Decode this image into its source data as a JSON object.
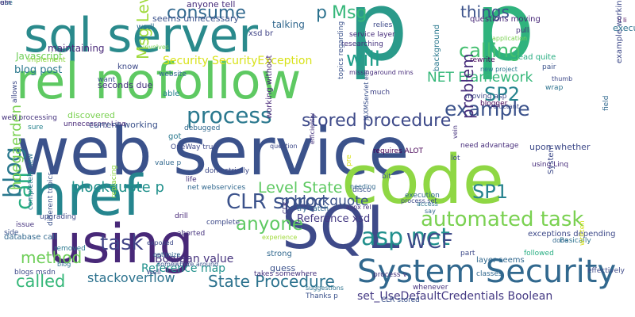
{
  "words": [
    {
      "text": "web service",
      "color": "#3b528b",
      "orientation": "horizontal"
    },
    {
      "text": "p",
      "color": "#2a9a8a",
      "orientation": "horizontal"
    },
    {
      "text": "p",
      "color": "#2fb37d",
      "orientation": "horizontal"
    },
    {
      "text": "sql server",
      "color": "#2a8a8c",
      "orientation": "horizontal"
    },
    {
      "text": "rel nofollow",
      "color": "#5ec962",
      "orientation": "horizontal"
    },
    {
      "text": "href",
      "color": "#25858e",
      "orientation": "horizontal"
    },
    {
      "text": "code",
      "color": "#8fd744",
      "orientation": "horizontal"
    },
    {
      "text": "using",
      "color": "#482878",
      "orientation": "horizontal"
    },
    {
      "text": "SQL",
      "color": "#3e4a89",
      "orientation": "horizontal"
    },
    {
      "text": "System Security",
      "color": "#31688e",
      "orientation": "horizontal"
    },
    {
      "text": "asp net",
      "color": "#21908d",
      "orientation": "horizontal"
    },
    {
      "text": "consume",
      "color": "#31688e",
      "orientation": "horizontal"
    },
    {
      "text": "Msg",
      "color": "#35b779",
      "orientation": "horizontal"
    },
    {
      "text": "p",
      "color": "#2c728e",
      "orientation": "horizontal"
    },
    {
      "text": "will",
      "color": "#1f9e89",
      "orientation": "horizontal"
    },
    {
      "text": "things",
      "color": "#3b528b",
      "orientation": "horizontal"
    },
    {
      "text": "calling",
      "color": "#44bf70",
      "orientation": "horizontal"
    },
    {
      "text": "process",
      "color": "#2a788e",
      "orientation": "horizontal"
    },
    {
      "text": "SP2",
      "color": "#25838e",
      "orientation": "horizontal"
    },
    {
      "text": "example",
      "color": "#3b528b",
      "orientation": "horizontal"
    },
    {
      "text": "stored procedure",
      "color": "#3e4a89",
      "orientation": "horizontal"
    },
    {
      "text": "CLR sproc",
      "color": "#3b528b",
      "orientation": "horizontal"
    },
    {
      "text": "anyone",
      "color": "#5ec962",
      "orientation": "horizontal"
    },
    {
      "text": "task",
      "color": "#414487",
      "orientation": "horizontal"
    },
    {
      "text": "automated task",
      "color": "#7ad151",
      "orientation": "horizontal"
    },
    {
      "text": "SP1",
      "color": "#26828e",
      "orientation": "horizontal"
    },
    {
      "text": "WCF",
      "color": "#3e4a89",
      "orientation": "horizontal"
    },
    {
      "text": "called",
      "color": "#35b779",
      "orientation": "horizontal"
    },
    {
      "text": "State Procedure",
      "color": "#2c728e",
      "orientation": "horizontal"
    },
    {
      "text": "method",
      "color": "#6ece58",
      "orientation": "horizontal"
    },
    {
      "text": "blockquote p",
      "color": "#21918c",
      "orientation": "horizontal"
    },
    {
      "text": "p blockquote",
      "color": "#3b528b",
      "orientation": "horizontal"
    },
    {
      "text": "Level State",
      "color": "#5ec962",
      "orientation": "horizontal"
    },
    {
      "text": "NET Framework",
      "color": "#35b779",
      "orientation": "horizontal"
    },
    {
      "text": "problem",
      "color": "#472d7b",
      "orientation": "vertical"
    },
    {
      "text": "call",
      "color": "#27ad81",
      "orientation": "vertical"
    },
    {
      "text": "blog",
      "color": "#2a788e",
      "orientation": "vertical"
    },
    {
      "text": "hoegaerden",
      "color": "#7ad151",
      "orientation": "vertical"
    },
    {
      "text": "Msg Level",
      "color": "#9fda3a",
      "orientation": "vertical"
    },
    {
      "text": "Security SecurityException",
      "color": "#d8e219",
      "orientation": "horizontal"
    },
    {
      "text": "set_UseDefaultCredentials Boolean",
      "color": "#443983",
      "orientation": "horizontal"
    },
    {
      "text": "stackoverflow",
      "color": "#2c728e",
      "orientation": "horizontal"
    },
    {
      "text": "Boolean value",
      "color": "#46337e",
      "orientation": "horizontal"
    },
    {
      "text": "Reference map",
      "color": "#21918c",
      "orientation": "horizontal"
    },
    {
      "text": "Reference xsd",
      "color": "#443983",
      "orientation": "horizontal"
    },
    {
      "text": "blog post",
      "color": "#2a788e",
      "orientation": "horizontal"
    },
    {
      "text": "Javascript",
      "color": "#6ece58",
      "orientation": "horizontal"
    },
    {
      "text": "maintaining",
      "color": "#482878",
      "orientation": "horizontal"
    },
    {
      "text": "anyone tell",
      "color": "#472d7b",
      "orientation": "horizontal"
    },
    {
      "text": "seems unnecessary",
      "color": "#3b528b",
      "orientation": "horizontal"
    },
    {
      "text": "wsdl",
      "color": "#2c728e",
      "orientation": "horizontal"
    },
    {
      "text": "talking",
      "color": "#31688e",
      "orientation": "horizontal"
    },
    {
      "text": "xsd br",
      "color": "#414487",
      "orientation": "horizontal"
    },
    {
      "text": "questions moving",
      "color": "#482878",
      "orientation": "horizontal"
    },
    {
      "text": "service layer",
      "color": "#472d7b",
      "orientation": "horizontal"
    },
    {
      "text": "researching",
      "color": "#46337e",
      "orientation": "horizontal"
    },
    {
      "text": "application",
      "color": "#7ad151",
      "orientation": "horizontal"
    },
    {
      "text": "rewrite",
      "color": "#440154",
      "orientation": "horizontal"
    },
    {
      "text": "read quite",
      "color": "#27ad81",
      "orientation": "horizontal"
    },
    {
      "text": "li li",
      "color": "#440154",
      "orientation": "horizontal"
    },
    {
      "text": "pair",
      "color": "#3b528b",
      "orientation": "horizontal"
    },
    {
      "text": "thumb",
      "color": "#3e4a89",
      "orientation": "horizontal"
    },
    {
      "text": "wrap",
      "color": "#2c728e",
      "orientation": "horizontal"
    },
    {
      "text": "new project",
      "color": "#2a788e",
      "orientation": "horizontal"
    },
    {
      "text": "moving asp",
      "color": "#3e4a89",
      "orientation": "horizontal"
    },
    {
      "text": "blogger",
      "color": "#440154",
      "orientation": "horizontal"
    },
    {
      "text": "reluctant",
      "color": "#3e4a89",
      "orientation": "horizontal"
    },
    {
      "text": "implement",
      "color": "#8fd744",
      "orientation": "horizontal"
    },
    {
      "text": "seconds due",
      "color": "#46337e",
      "orientation": "horizontal"
    },
    {
      "text": "want",
      "color": "#3b528b",
      "orientation": "horizontal"
    },
    {
      "text": "able",
      "color": "#26828e",
      "orientation": "horizontal"
    },
    {
      "text": "website",
      "color": "#31688e",
      "orientation": "horizontal"
    },
    {
      "text": "missingaround mins",
      "color": "#472d7b",
      "orientation": "horizontal"
    },
    {
      "text": "much",
      "color": "#414487",
      "orientation": "horizontal"
    },
    {
      "text": "involves",
      "color": "#7ad151",
      "orientation": "horizontal"
    },
    {
      "text": "relies",
      "color": "#3e4a89",
      "orientation": "horizontal"
    },
    {
      "text": "pull",
      "color": "#46337e",
      "orientation": "horizontal"
    },
    {
      "text": "discovered",
      "color": "#7ad151",
      "orientation": "horizontal"
    },
    {
      "text": "sure",
      "color": "#26828e",
      "orientation": "horizontal"
    },
    {
      "text": "unnecessary Linq",
      "color": "#482878",
      "orientation": "horizontal"
    },
    {
      "text": "current working",
      "color": "#3b528b",
      "orientation": "horizontal"
    },
    {
      "text": "debugged",
      "color": "#31688e",
      "orientation": "horizontal"
    },
    {
      "text": "got",
      "color": "#2a788e",
      "orientation": "horizontal"
    },
    {
      "text": "OneWay true",
      "color": "#3e4a89",
      "orientation": "horizontal"
    },
    {
      "text": "value p",
      "color": "#31688e",
      "orientation": "horizontal"
    },
    {
      "text": "done strictly",
      "color": "#3e4a89",
      "orientation": "horizontal"
    },
    {
      "text": "life",
      "color": "#46337e",
      "orientation": "horizontal"
    },
    {
      "text": "net webservices",
      "color": "#31688e",
      "orientation": "horizontal"
    },
    {
      "text": "question",
      "color": "#3e4a89",
      "orientation": "horizontal"
    },
    {
      "text": "requires ALOT",
      "color": "#440154",
      "orientation": "horizontal"
    },
    {
      "text": "try catch",
      "color": "#31688e",
      "orientation": "horizontal"
    },
    {
      "text": "disco",
      "color": "#3b528b",
      "orientation": "horizontal"
    },
    {
      "text": "aspx rel",
      "color": "#46337e",
      "orientation": "horizontal"
    },
    {
      "text": "process set",
      "color": "#3e4a89",
      "orientation": "horizontal"
    },
    {
      "text": "using Linq",
      "color": "#472d7b",
      "orientation": "horizontal"
    },
    {
      "text": "upon whether",
      "color": "#3e4a89",
      "orientation": "horizontal"
    },
    {
      "text": "need advantage",
      "color": "#472d7b",
      "orientation": "horizontal"
    },
    {
      "text": "lot",
      "color": "#3e4a89",
      "orientation": "horizontal"
    },
    {
      "text": "say",
      "color": "#31688e",
      "orientation": "horizontal"
    },
    {
      "text": "access",
      "color": "#2c728e",
      "orientation": "horizontal"
    },
    {
      "text": "drill",
      "color": "#482878",
      "orientation": "horizontal"
    },
    {
      "text": "complete",
      "color": "#3e4a89",
      "orientation": "horizontal"
    },
    {
      "text": "experience",
      "color": "#9fda3a",
      "orientation": "horizontal"
    },
    {
      "text": "execution",
      "color": "#31688e",
      "orientation": "horizontal"
    },
    {
      "text": "Basically",
      "color": "#2c728e",
      "orientation": "horizontal"
    },
    {
      "text": "exceptions depending",
      "color": "#3e4a89",
      "orientation": "horizontal"
    },
    {
      "text": "aborted",
      "color": "#46337e",
      "orientation": "horizontal"
    },
    {
      "text": "somewhere around",
      "color": "#3b528b",
      "orientation": "horizontal"
    },
    {
      "text": "optimize",
      "color": "#31688e",
      "orientation": "horizontal"
    },
    {
      "text": "exposed",
      "color": "#3e4a89",
      "orientation": "horizontal"
    },
    {
      "text": "followed",
      "color": "#27ad81",
      "orientation": "horizontal"
    },
    {
      "text": "done",
      "color": "#31688e",
      "orientation": "horizontal"
    },
    {
      "text": "side",
      "color": "#3b528b",
      "orientation": "horizontal"
    },
    {
      "text": "issue",
      "color": "#46337e",
      "orientation": "horizontal"
    },
    {
      "text": "upgrading",
      "color": "#3e4a89",
      "orientation": "horizontal"
    },
    {
      "text": "removed",
      "color": "#2a788e",
      "orientation": "horizontal"
    },
    {
      "text": "blog",
      "color": "#2c728e",
      "orientation": "horizontal"
    },
    {
      "text": "blogs msdn",
      "color": "#3e4a89",
      "orientation": "horizontal"
    },
    {
      "text": "strong",
      "color": "#31688e",
      "orientation": "horizontal"
    },
    {
      "text": "guess",
      "color": "#3b528b",
      "orientation": "horizontal"
    },
    {
      "text": "takes somewhere",
      "color": "#46337e",
      "orientation": "horizontal"
    },
    {
      "text": "well",
      "color": "#3e4a89",
      "orientation": "horizontal"
    },
    {
      "text": "suggestions",
      "color": "#2c728e",
      "orientation": "horizontal"
    },
    {
      "text": "Thanks p",
      "color": "#3b528b",
      "orientation": "horizontal"
    },
    {
      "text": "process v",
      "color": "#46337e",
      "orientation": "horizontal"
    },
    {
      "text": "layer seems",
      "color": "#31688e",
      "orientation": "horizontal"
    },
    {
      "text": "part",
      "color": "#3e4a89",
      "orientation": "horizontal"
    },
    {
      "text": "whenever",
      "color": "#46337e",
      "orientation": "horizontal"
    },
    {
      "text": "CLR stored",
      "color": "#3b528b",
      "orientation": "horizontal"
    },
    {
      "text": "classes",
      "color": "#31688e",
      "orientation": "horizontal"
    },
    {
      "text": "effectively",
      "color": "#3e4a89",
      "orientation": "horizontal"
    },
    {
      "text": "execute",
      "color": "#2c728e",
      "orientation": "horizontal"
    },
    {
      "text": "database call",
      "color": "#31688e",
      "orientation": "horizontal"
    },
    {
      "text": "web processing",
      "color": "#46337e",
      "orientation": "horizontal"
    },
    {
      "text": "know",
      "color": "#3e4a89",
      "orientation": "horizontal"
    },
    {
      "text": "background",
      "color": "#2a788e",
      "orientation": "vertical"
    },
    {
      "text": "topics regarding",
      "color": "#3b528b",
      "orientation": "vertical"
    },
    {
      "text": "working without",
      "color": "#482878",
      "orientation": "vertical"
    },
    {
      "text": "System",
      "color": "#3e4a89",
      "orientation": "vertical"
    },
    {
      "text": "replacing",
      "color": "#8fd744",
      "orientation": "vertical"
    },
    {
      "text": "CLR",
      "color": "#46337e",
      "orientation": "vertical"
    },
    {
      "text": "pre",
      "color": "#d8e219",
      "orientation": "vertical"
    },
    {
      "text": "JAXMServlet em",
      "color": "#3b528b",
      "orientation": "vertical"
    },
    {
      "text": "example working",
      "color": "#3e4a89",
      "orientation": "vertical"
    },
    {
      "text": "field",
      "color": "#31688e",
      "orientation": "vertical"
    },
    {
      "text": "written",
      "color": "#d8e219",
      "orientation": "vertical"
    },
    {
      "text": "vein",
      "color": "#46337e",
      "orientation": "vertical"
    },
    {
      "text": "completely new",
      "color": "#2c728e",
      "orientation": "vertical"
    },
    {
      "text": "different topics",
      "color": "#3b528b",
      "orientation": "vertical"
    },
    {
      "text": "efficiently",
      "color": "#46337e",
      "orientation": "vertical"
    },
    {
      "text": "allows",
      "color": "#3e4a89",
      "orientation": "vertical"
    },
    {
      "text": "bit",
      "color": "#3b528b",
      "orientation": "horizontal"
    },
    {
      "text": "needing",
      "color": "#31688e",
      "orientation": "horizontal"
    },
    {
      "text": "set",
      "color": "#3e4a89",
      "orientation": "vertical"
    },
    {
      "text": "use",
      "color": "#2a788e",
      "orientation": "horizontal"
    },
    {
      "text": "ol",
      "color": "#3e4a89",
      "orientation": "horizontal"
    },
    {
      "text": "em",
      "color": "#46337e",
      "orientation": "horizontal"
    }
  ]
}
